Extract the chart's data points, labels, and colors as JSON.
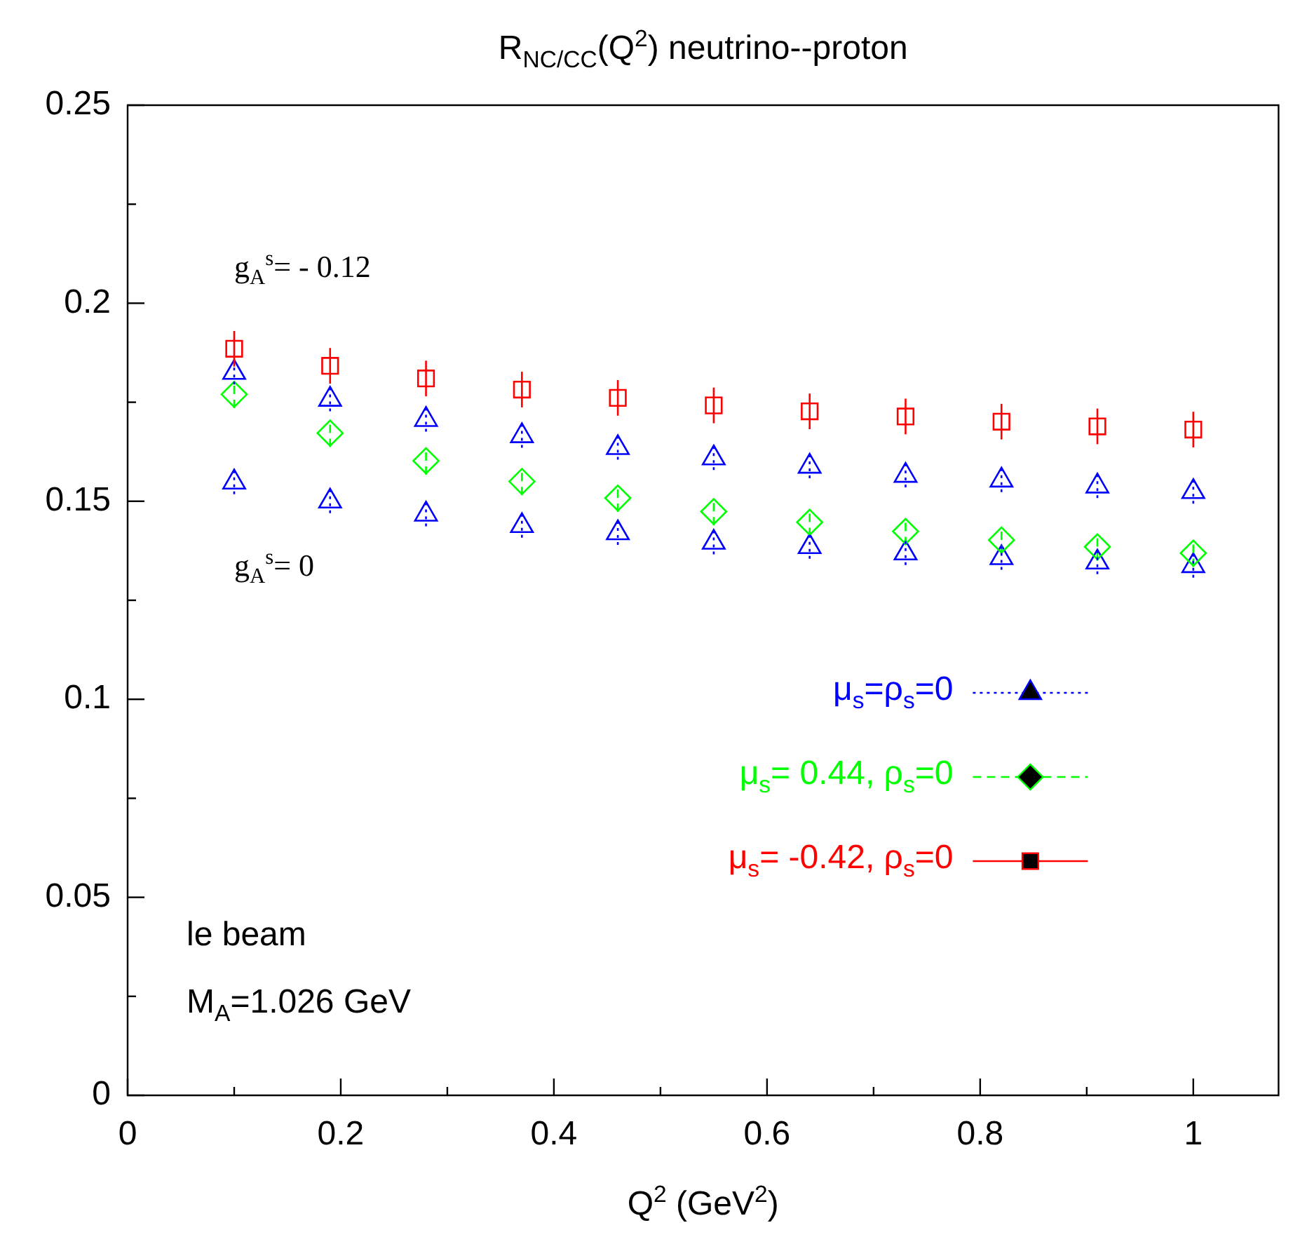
{
  "chart_data": {
    "type": "scatter",
    "title": "R$_{NC/CC}$(Q$^{2}$) neutrino--proton",
    "xlabel": "Q$^{2}$ (GeV$^{2}$)",
    "x": [
      0.1,
      0.19,
      0.28,
      0.37,
      0.46,
      0.55,
      0.64,
      0.73,
      0.82,
      0.91,
      1.0
    ],
    "series": [
      {
        "name": "μ$_{s}$=ρ$_{s}$=0",
        "color": "#0000ff",
        "marker": "triangle",
        "line_style": "dotted",
        "values": [
          0.1825,
          0.1757,
          0.1706,
          0.1665,
          0.1635,
          0.1609,
          0.1588,
          0.1565,
          0.1553,
          0.1538,
          0.1524
        ],
        "errors": [
          0.003,
          0.003,
          0.003,
          0.003,
          0.003,
          0.003,
          0.003,
          0.003,
          0.003,
          0.003,
          0.003
        ]
      },
      {
        "name": "μ$_{s}$= 0.44, ρ$_{s}$=0",
        "color": "#00ff00",
        "marker": "diamond",
        "line_style": "dashed",
        "values": [
          0.177,
          0.1672,
          0.1602,
          0.155,
          0.1508,
          0.1474,
          0.1447,
          0.1424,
          0.1402,
          0.1385,
          0.1369
        ],
        "errors": [
          0.0035,
          0.0035,
          0.0035,
          0.0035,
          0.0035,
          0.0035,
          0.0035,
          0.0035,
          0.0035,
          0.0035,
          0.0035
        ]
      },
      {
        "name": "μ$_{s}$= -0.42, ρ$_{s}$=0",
        "color": "#ff0000",
        "marker": "square",
        "line_style": "solid",
        "values": [
          0.1885,
          0.1842,
          0.181,
          0.1782,
          0.1761,
          0.1742,
          0.1727,
          0.1714,
          0.1701,
          0.1689,
          0.1681
        ],
        "errors": [
          0.0045,
          0.0045,
          0.0045,
          0.0045,
          0.0045,
          0.0045,
          0.0045,
          0.0045,
          0.0045,
          0.0045,
          0.0045
        ]
      },
      {
        "color": "#0000ff",
        "marker": "triangle",
        "line_style": "dotted",
        "values": [
          0.1548,
          0.15,
          0.1467,
          0.1438,
          0.142,
          0.1396,
          0.1385,
          0.1369,
          0.1357,
          0.1346,
          0.1337
        ],
        "errors": [
          0.003,
          0.003,
          0.003,
          0.003,
          0.003,
          0.003,
          0.003,
          0.003,
          0.003,
          0.003,
          0.003
        ]
      }
    ],
    "xlim": [
      0,
      1.08
    ],
    "xticks": [
      0,
      {
        "value": 0.1,
        "label": null
      },
      0.2,
      {
        "value": 0.3,
        "label": null
      },
      0.4,
      {
        "value": 0.5,
        "label": null
      },
      0.6,
      {
        "value": 0.7,
        "label": null
      },
      0.8,
      {
        "value": 0.9,
        "label": null
      },
      1
    ],
    "ylim": [
      0,
      0.25
    ],
    "yticks": [
      0,
      {
        "value": 0.025,
        "label": null
      },
      0.05,
      {
        "value": 0.075,
        "label": null
      },
      0.1,
      {
        "value": 0.125,
        "label": null
      },
      0.15,
      {
        "value": 0.175,
        "label": null
      },
      0.2,
      {
        "value": 0.225,
        "label": null
      },
      0.25
    ],
    "grid": false,
    "legend": "right",
    "annotations": [
      "g$_{A}$$^{s}$= - 0.12",
      "g$_{A}$$^{s}$= 0",
      "le beam",
      "M$_{A}$=1.026 GeV"
    ]
  }
}
